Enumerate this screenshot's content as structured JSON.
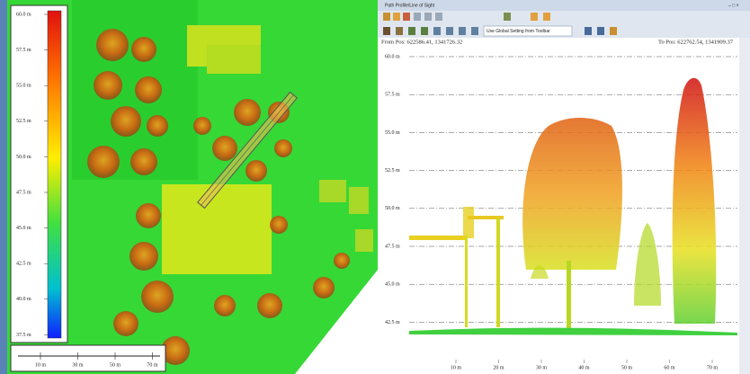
{
  "map_view": {
    "legend_labels": [
      "60.0 m",
      "57.5 m",
      "55.0 m",
      "52.5 m",
      "50.0 m",
      "47.5 m",
      "45.0 m",
      "42.5 m",
      "40.0 m",
      "37.5 m"
    ],
    "scale_labels": [
      "10 m",
      "30 m",
      "50 m",
      "70 m"
    ]
  },
  "profile_window": {
    "title": "Path Profile/Line of Sight",
    "toolbar_text": "Use Global Setting from Toolbar",
    "from_pos": "From Pos: 622586.41, 1341726.32",
    "to_pos": "To Pos: 622762.54, 1341909.37",
    "y_labels": [
      "60.0 m",
      "57.5 m",
      "55.0 m",
      "52.5 m",
      "50.0 m",
      "47.5 m",
      "45.0 m",
      "42.5 m"
    ],
    "x_labels": [
      "10 m",
      "20 m",
      "30 m",
      "40 m",
      "50 m",
      "60 m",
      "70 m"
    ]
  }
}
